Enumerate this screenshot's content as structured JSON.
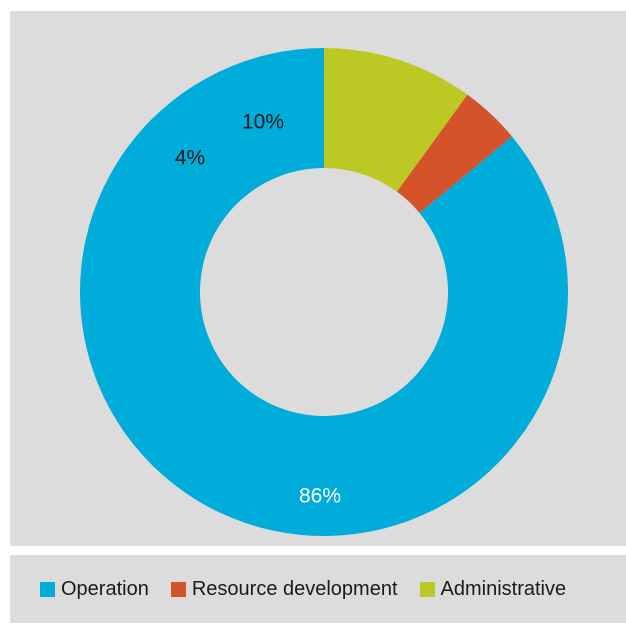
{
  "chart_data": {
    "type": "pie",
    "variant": "donut",
    "title": "",
    "slices": [
      {
        "name": "Operation",
        "value": 86,
        "label": "86%",
        "color": "#00acd9",
        "label_color": "#ffffff"
      },
      {
        "name": "Resource development",
        "value": 4,
        "label": "4%",
        "color": "#d5532a",
        "label_color": "#1a1a1a"
      },
      {
        "name": "Administrative",
        "value": 10,
        "label": "10%",
        "color": "#bcc925",
        "label_color": "#1a1a1a"
      }
    ],
    "legend_placement": "bottom",
    "background_color": "#dcdcdc"
  }
}
